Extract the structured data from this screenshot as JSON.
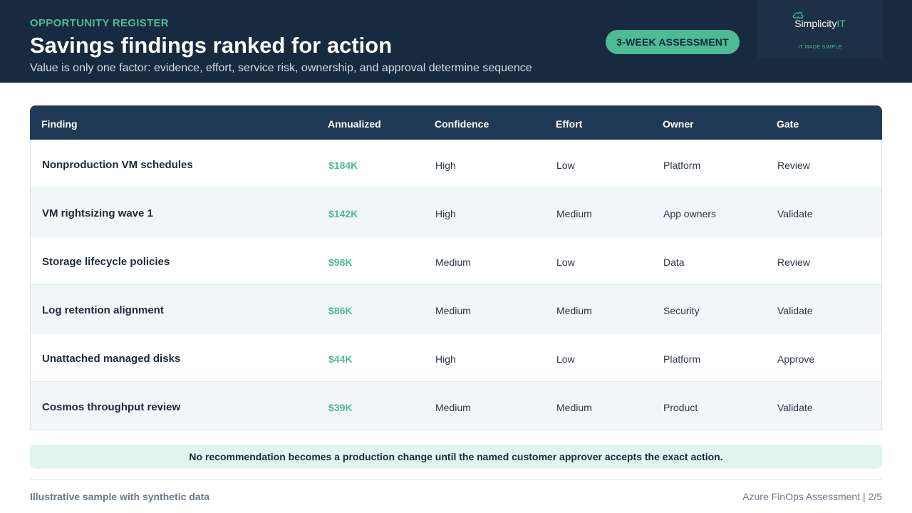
{
  "header": {
    "eyebrow": "OPPORTUNITY REGISTER",
    "title": "Savings findings ranked for action",
    "subtitle": "Value is only one factor: evidence, effort, service risk, ownership, and approval determine sequence",
    "badge": "3-WEEK ASSESSMENT",
    "logo": {
      "brand_main": "Simplicity",
      "brand_accent": "IT",
      "tagline": "IT MADE SIMPLE",
      "icon": "cloud-icon"
    }
  },
  "table": {
    "columns": [
      "Finding",
      "Annualized",
      "Confidence",
      "Effort",
      "Owner",
      "Gate"
    ],
    "rows": [
      {
        "finding": "Nonproduction VM schedules",
        "annualized": "$184K",
        "confidence": "High",
        "effort": "Low",
        "owner": "Platform",
        "gate": "Review"
      },
      {
        "finding": "VM rightsizing wave 1",
        "annualized": "$142K",
        "confidence": "High",
        "effort": "Medium",
        "owner": "App owners",
        "gate": "Validate"
      },
      {
        "finding": "Storage lifecycle policies",
        "annualized": "$98K",
        "confidence": "Medium",
        "effort": "Low",
        "owner": "Data",
        "gate": "Review"
      },
      {
        "finding": "Log retention alignment",
        "annualized": "$86K",
        "confidence": "Medium",
        "effort": "Medium",
        "owner": "Security",
        "gate": "Validate"
      },
      {
        "finding": "Unattached managed disks",
        "annualized": "$44K",
        "confidence": "High",
        "effort": "Low",
        "owner": "Platform",
        "gate": "Approve"
      },
      {
        "finding": "Cosmos throughput review",
        "annualized": "$39K",
        "confidence": "Medium",
        "effort": "Medium",
        "owner": "Product",
        "gate": "Validate"
      }
    ]
  },
  "note": "No recommendation becomes a production change until the named customer approver accepts the exact action.",
  "footer": {
    "left": "Illustrative sample with synthetic data",
    "right": "Azure FinOps Assessment | 2/5"
  },
  "colors": {
    "navy": "#182a40",
    "accent": "#4dbb94",
    "table_header": "#203a56"
  }
}
